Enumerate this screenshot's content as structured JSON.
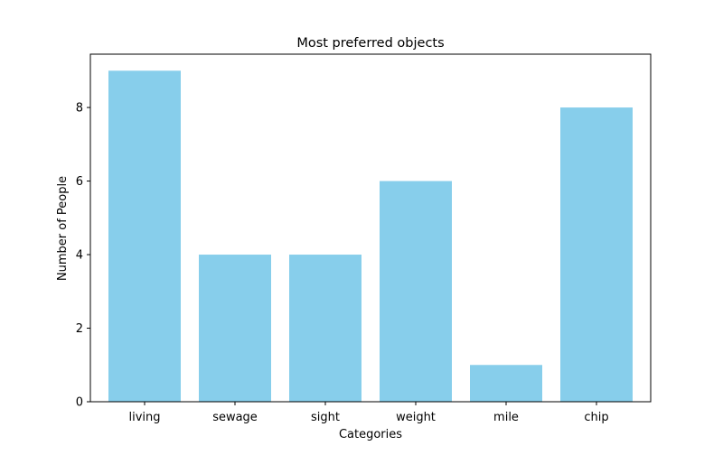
{
  "chart_data": {
    "type": "bar",
    "title": "Most preferred objects",
    "xlabel": "Categories",
    "ylabel": "Number of People",
    "categories": [
      "living",
      "sewage",
      "sight",
      "weight",
      "mile",
      "chip"
    ],
    "values": [
      9,
      4,
      4,
      6,
      1,
      8
    ],
    "ylim": [
      0,
      9.45
    ],
    "yticks": [
      0,
      2,
      4,
      6,
      8
    ],
    "bar_color": "#87CEEB",
    "grid": false,
    "legend": "none"
  }
}
